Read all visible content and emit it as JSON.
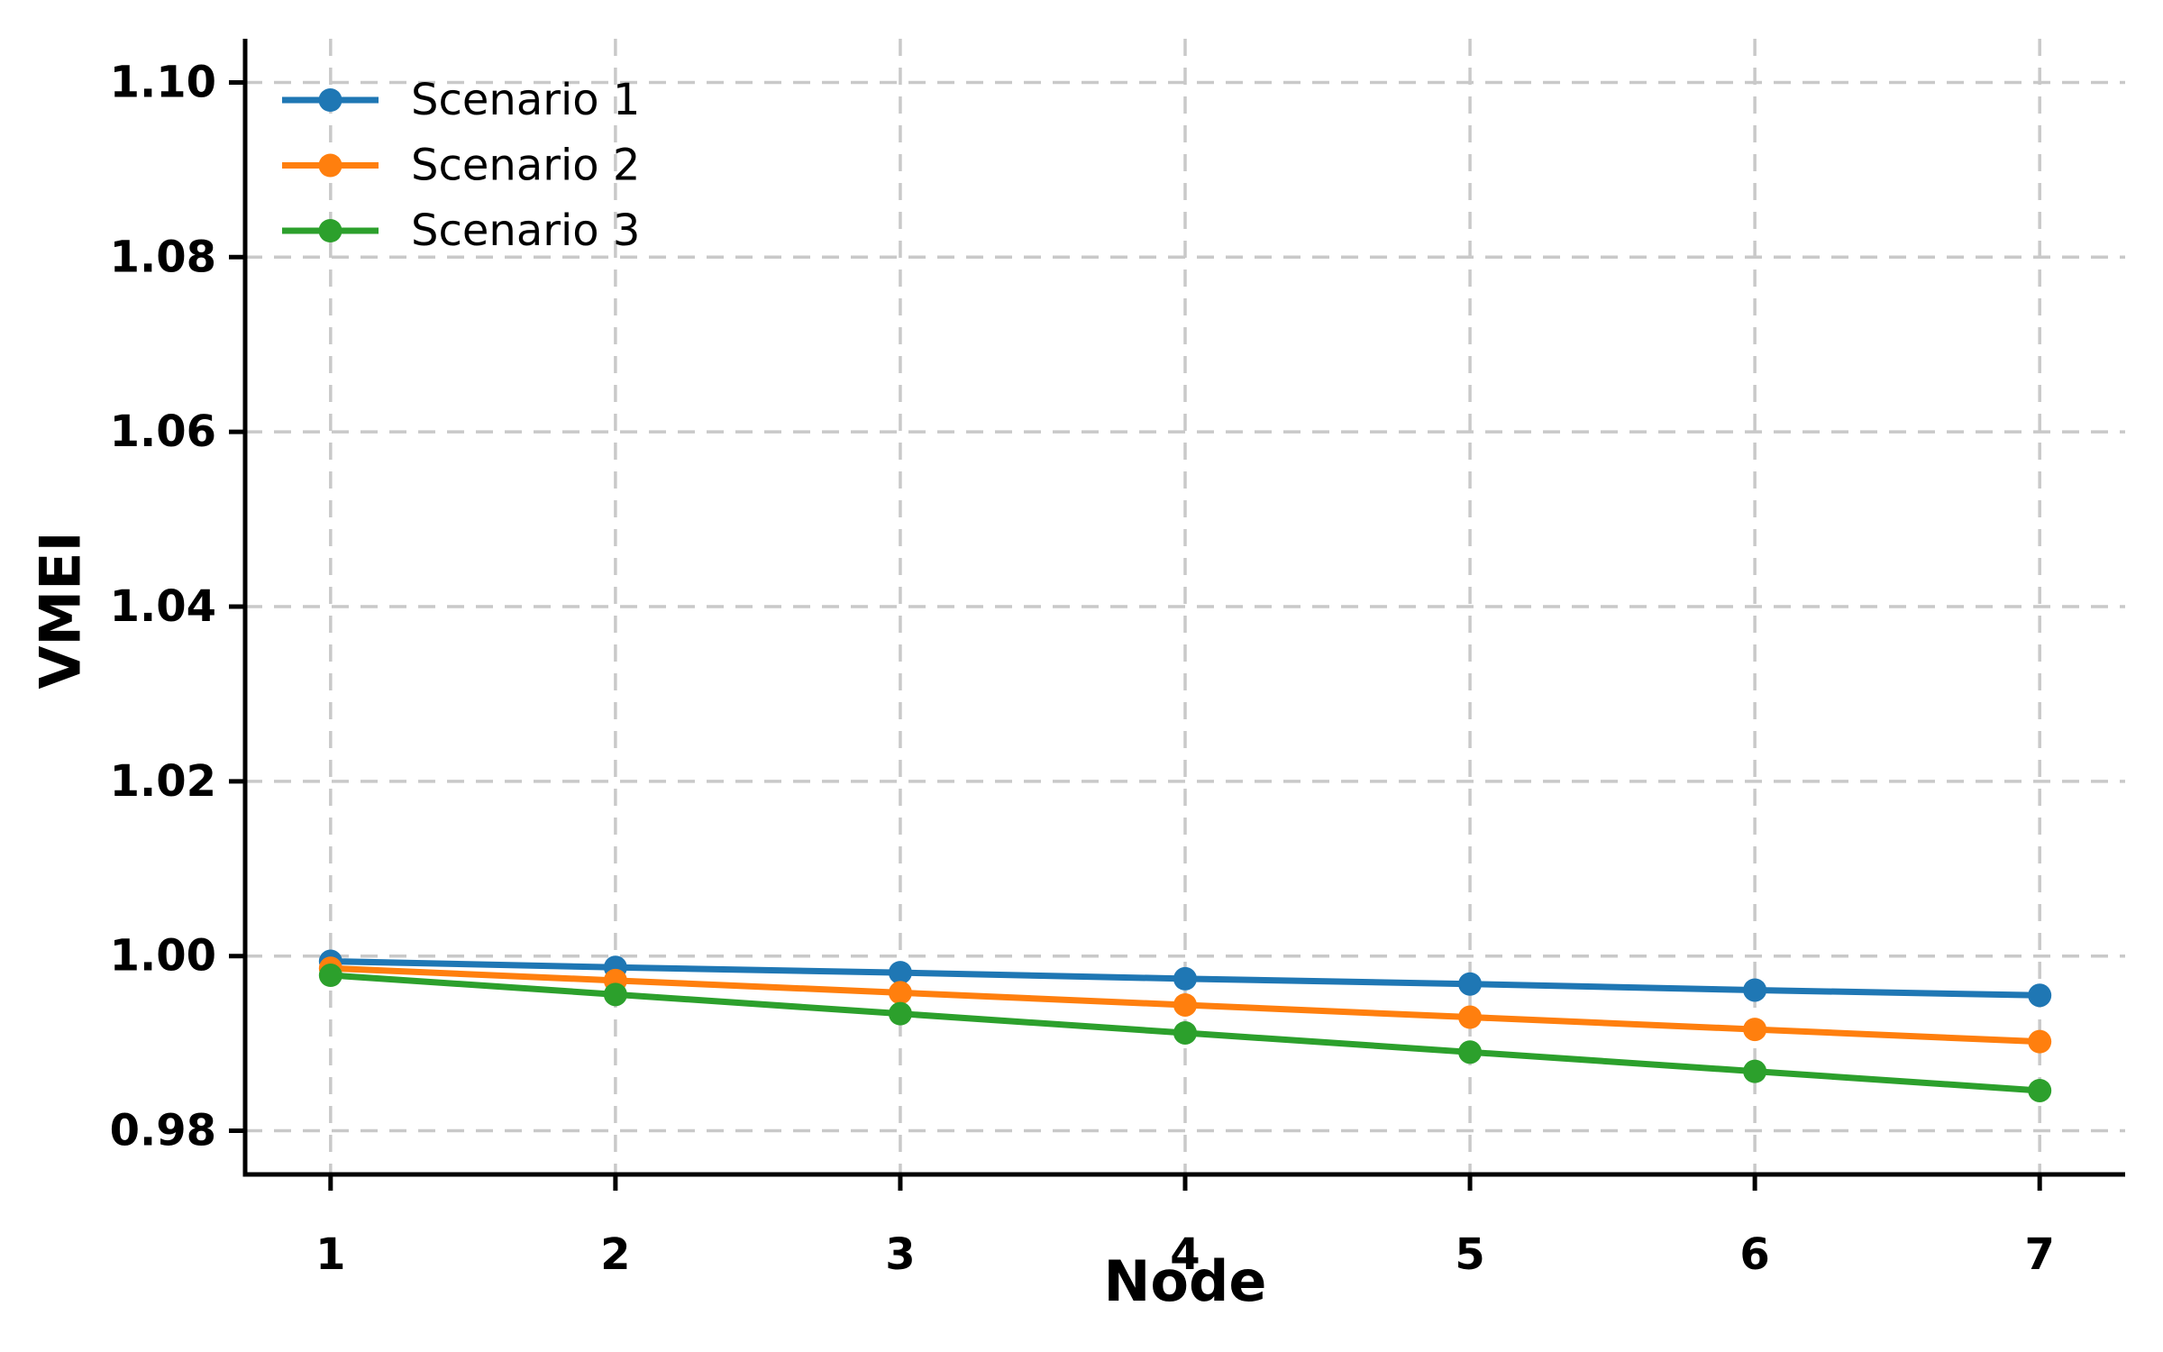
{
  "chart_data": {
    "type": "line",
    "title": "",
    "xlabel": "Node",
    "ylabel": "VMEI",
    "x": [
      1,
      2,
      3,
      4,
      5,
      6,
      7
    ],
    "series": [
      {
        "name": "Scenario 1",
        "color": "#1f77b4",
        "values": [
          0.9994,
          0.9987,
          0.9981,
          0.9974,
          0.9968,
          0.9961,
          0.9955
        ]
      },
      {
        "name": "Scenario 2",
        "color": "#ff7f0e",
        "values": [
          0.9986,
          0.9972,
          0.9958,
          0.9944,
          0.993,
          0.9916,
          0.9902
        ]
      },
      {
        "name": "Scenario 3",
        "color": "#2ca02c",
        "values": [
          0.9978,
          0.9956,
          0.9934,
          0.9912,
          0.989,
          0.9868,
          0.9846
        ]
      }
    ],
    "xlim": [
      0.7,
      7.3
    ],
    "ylim": [
      0.975,
      1.105
    ],
    "xticks": [
      1,
      2,
      3,
      4,
      5,
      6,
      7
    ],
    "xtick_labels": [
      "1",
      "2",
      "3",
      "4",
      "5",
      "6",
      "7"
    ],
    "yticks": [
      0.98,
      1.0,
      1.02,
      1.04,
      1.06,
      1.08,
      1.1
    ],
    "ytick_labels": [
      "0.98",
      "1.00",
      "1.02",
      "1.04",
      "1.06",
      "1.08",
      "1.10"
    ],
    "grid": true,
    "grid_style": "dashed",
    "grid_color": "#c9c9c9",
    "axis_color": "#000000",
    "marker": "circle",
    "legend_position": "upper left",
    "legend_frame": false
  }
}
